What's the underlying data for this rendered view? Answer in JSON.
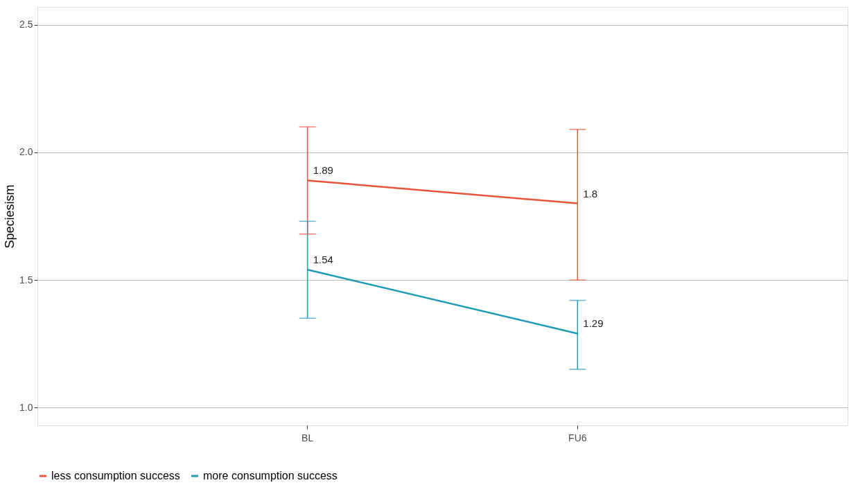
{
  "chart_data": {
    "type": "line",
    "ylabel": "Speciesism",
    "categories": [
      "BL",
      "FU6"
    ],
    "series": [
      {
        "name": "less consumption success",
        "color": "#e8533a",
        "values": [
          1.89,
          1.8
        ],
        "errors": [
          [
            1.68,
            2.1
          ],
          [
            1.5,
            2.09
          ]
        ]
      },
      {
        "name": "more consumption success",
        "color": "#1f9ab5",
        "values": [
          1.54,
          1.29
        ],
        "errors": [
          [
            1.35,
            1.73
          ],
          [
            1.15,
            1.42
          ]
        ]
      }
    ],
    "ylim": [
      0.93,
      2.57
    ],
    "yticks": [
      {
        "value": 1.0,
        "label": "1.0"
      },
      {
        "value": 1.5,
        "label": "1.5"
      },
      {
        "value": 2.0,
        "label": "2.0"
      },
      {
        "value": 2.5,
        "label": "2.5"
      }
    ],
    "grid": "y",
    "legend": "bottom",
    "data_labels": true,
    "marker": "none",
    "line_style": "solid"
  }
}
